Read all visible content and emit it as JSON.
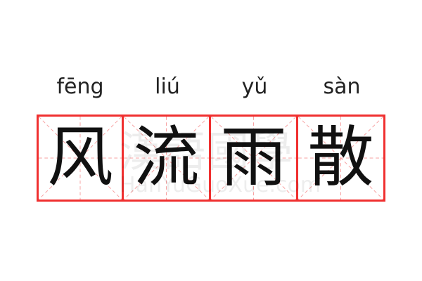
{
  "characters": [
    {
      "hanzi": "风",
      "pinyin": "fēng"
    },
    {
      "hanzi": "流",
      "pinyin": "liú"
    },
    {
      "hanzi": "雨",
      "pinyin": "yǔ"
    },
    {
      "hanzi": "散",
      "pinyin": "sàn"
    }
  ],
  "watermark": {
    "logo": "漢語國學",
    "site": "HanYuGuoXue.com"
  },
  "colors": {
    "border": "#f03030",
    "guide": "#f7a0a0",
    "text": "#111111"
  }
}
